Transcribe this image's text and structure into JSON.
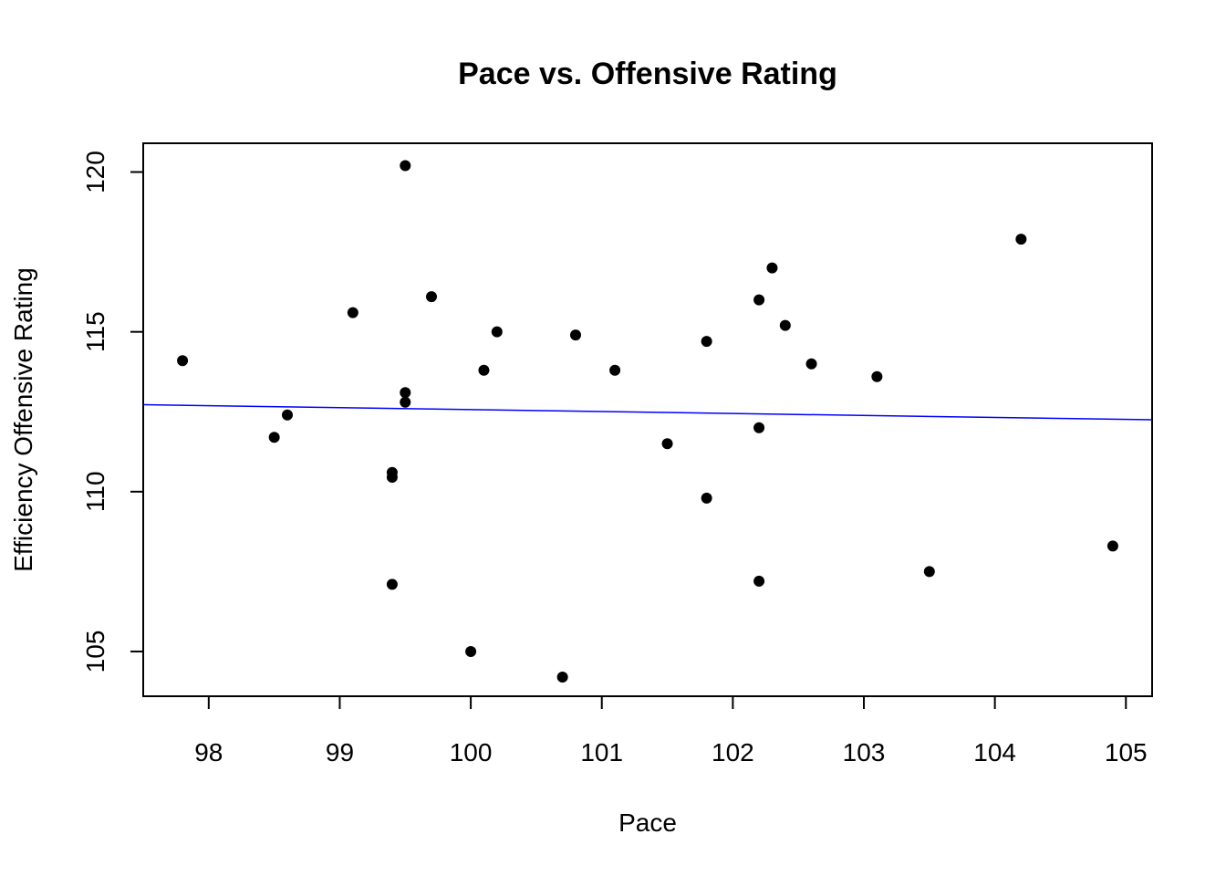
{
  "chart_data": {
    "type": "scatter",
    "title": "Pace vs. Offensive Rating",
    "xlabel": "Pace",
    "ylabel": "Efficiency Offensive Rating",
    "xlim": [
      97.5,
      105.2
    ],
    "ylim": [
      103.6,
      120.9
    ],
    "x_ticks": [
      98,
      99,
      100,
      101,
      102,
      103,
      104,
      105
    ],
    "y_ticks": [
      105,
      110,
      115,
      120
    ],
    "grid": false,
    "point_color": "#000000",
    "line_color": "#0000ff",
    "points": [
      {
        "x": 97.8,
        "y": 114.1
      },
      {
        "x": 98.5,
        "y": 111.7
      },
      {
        "x": 98.6,
        "y": 112.4
      },
      {
        "x": 99.1,
        "y": 115.6
      },
      {
        "x": 99.4,
        "y": 110.6
      },
      {
        "x": 99.4,
        "y": 110.45
      },
      {
        "x": 99.4,
        "y": 107.1
      },
      {
        "x": 99.5,
        "y": 120.2
      },
      {
        "x": 99.5,
        "y": 113.1
      },
      {
        "x": 99.5,
        "y": 112.8
      },
      {
        "x": 99.7,
        "y": 116.1
      },
      {
        "x": 100.0,
        "y": 105.0
      },
      {
        "x": 100.1,
        "y": 113.8
      },
      {
        "x": 100.2,
        "y": 115.0
      },
      {
        "x": 100.7,
        "y": 104.2
      },
      {
        "x": 100.8,
        "y": 114.9
      },
      {
        "x": 101.1,
        "y": 113.8
      },
      {
        "x": 101.5,
        "y": 111.5
      },
      {
        "x": 101.8,
        "y": 114.7
      },
      {
        "x": 101.8,
        "y": 109.8
      },
      {
        "x": 102.2,
        "y": 116.0
      },
      {
        "x": 102.2,
        "y": 112.0
      },
      {
        "x": 102.2,
        "y": 107.2
      },
      {
        "x": 102.3,
        "y": 117.0
      },
      {
        "x": 102.4,
        "y": 115.2
      },
      {
        "x": 102.6,
        "y": 114.0
      },
      {
        "x": 103.1,
        "y": 113.6
      },
      {
        "x": 103.5,
        "y": 107.5
      },
      {
        "x": 104.2,
        "y": 117.9
      },
      {
        "x": 104.9,
        "y": 108.3
      }
    ],
    "regression_line": {
      "x": [
        97.5,
        105.2
      ],
      "y": [
        112.72,
        112.25
      ]
    }
  }
}
